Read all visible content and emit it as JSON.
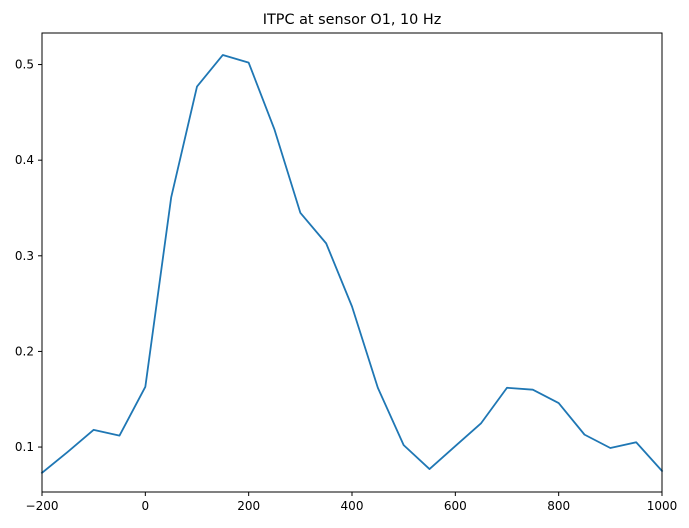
{
  "chart_data": {
    "type": "line",
    "title": "ITPC at sensor O1, 10 Hz",
    "xlabel": "",
    "ylabel": "",
    "xlim": [
      -200,
      1000
    ],
    "ylim": [
      0.053,
      0.533
    ],
    "xticks": [
      -200,
      0,
      200,
      400,
      600,
      800,
      1000
    ],
    "yticks": [
      0.1,
      0.2,
      0.3,
      0.4,
      0.5
    ],
    "xtick_labels": [
      "−200",
      "0",
      "200",
      "400",
      "600",
      "800",
      "1000"
    ],
    "ytick_labels": [
      "0.1",
      "0.2",
      "0.3",
      "0.4",
      "0.5"
    ],
    "grid": false,
    "series": [
      {
        "color": "#1f77b4",
        "x": [
          -200,
          -150,
          -100,
          -50,
          0,
          50,
          100,
          150,
          200,
          250,
          300,
          350,
          400,
          450,
          500,
          550,
          600,
          650,
          700,
          750,
          800,
          850,
          900,
          950,
          1000
        ],
        "y": [
          0.073,
          0.095,
          0.118,
          0.112,
          0.163,
          0.361,
          0.477,
          0.51,
          0.502,
          0.432,
          0.345,
          0.313,
          0.247,
          0.162,
          0.102,
          0.077,
          0.101,
          0.125,
          0.162,
          0.16,
          0.146,
          0.113,
          0.099,
          0.105,
          0.075
        ]
      }
    ]
  }
}
